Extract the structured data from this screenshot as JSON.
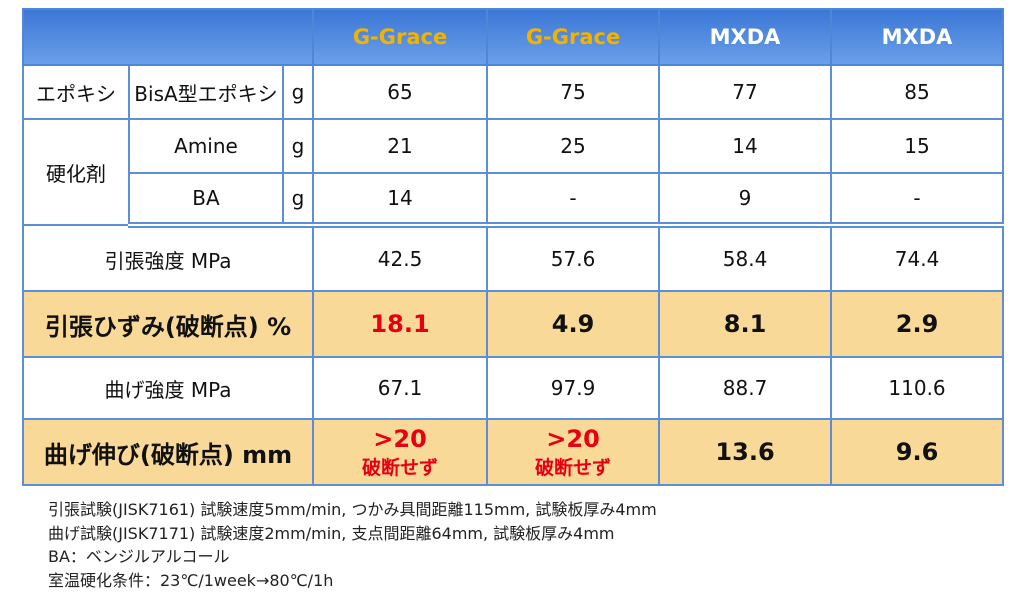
{
  "header": [
    {
      "text": "G-Grace",
      "color": "#f2b300"
    },
    {
      "text": "G-Grace",
      "color": "#f2b300"
    },
    {
      "text": "MXDA",
      "color": "#ffffff"
    },
    {
      "text": "MXDA",
      "color": "#ffffff"
    }
  ],
  "composition": [
    {
      "group": "エポキシ",
      "rows": [
        {
          "item": "BisA型エポキシ",
          "unit": "g",
          "values": [
            "65",
            "75",
            "77",
            "85"
          ]
        }
      ]
    },
    {
      "group": "硬化剤",
      "rows": [
        {
          "item": "Amine",
          "unit": "g",
          "values": [
            "21",
            "25",
            "14",
            "15"
          ]
        },
        {
          "item": "BA",
          "unit": "g",
          "values": [
            "14",
            "-",
            "9",
            "-"
          ]
        }
      ]
    }
  ],
  "properties": [
    {
      "label": "引張強度 MPa",
      "highlight": false,
      "values": [
        "42.5",
        "57.6",
        "58.4",
        "74.4"
      ]
    },
    {
      "label": "引張ひずみ(破断点) %",
      "highlight": true,
      "values": [
        {
          "text": "18.1",
          "alert": true
        },
        "4.9",
        "8.1",
        "2.9"
      ]
    },
    {
      "label": "曲げ強度 MPa",
      "highlight": false,
      "values": [
        "67.1",
        "97.9",
        "88.7",
        "110.6"
      ]
    },
    {
      "label": "曲げ伸び(破断点) mm",
      "highlight": true,
      "values": [
        {
          "text": ">20",
          "note": "破断せず",
          "alert": true
        },
        {
          "text": ">20",
          "note": "破断せず",
          "alert": true
        },
        "13.6",
        "9.6"
      ]
    }
  ],
  "notes": [
    "引張試験(JISK7161)  試験速度5mm/min, つかみ具間距離115mm, 試験板厚み4mm",
    "曲げ試験(JISK7171)  試験速度2mm/min, 支点間距離64mm, 試験板厚み4mm",
    "BA：ベンジルアルコール",
    "室温硬化条件：23℃/1week→80℃/1h"
  ]
}
